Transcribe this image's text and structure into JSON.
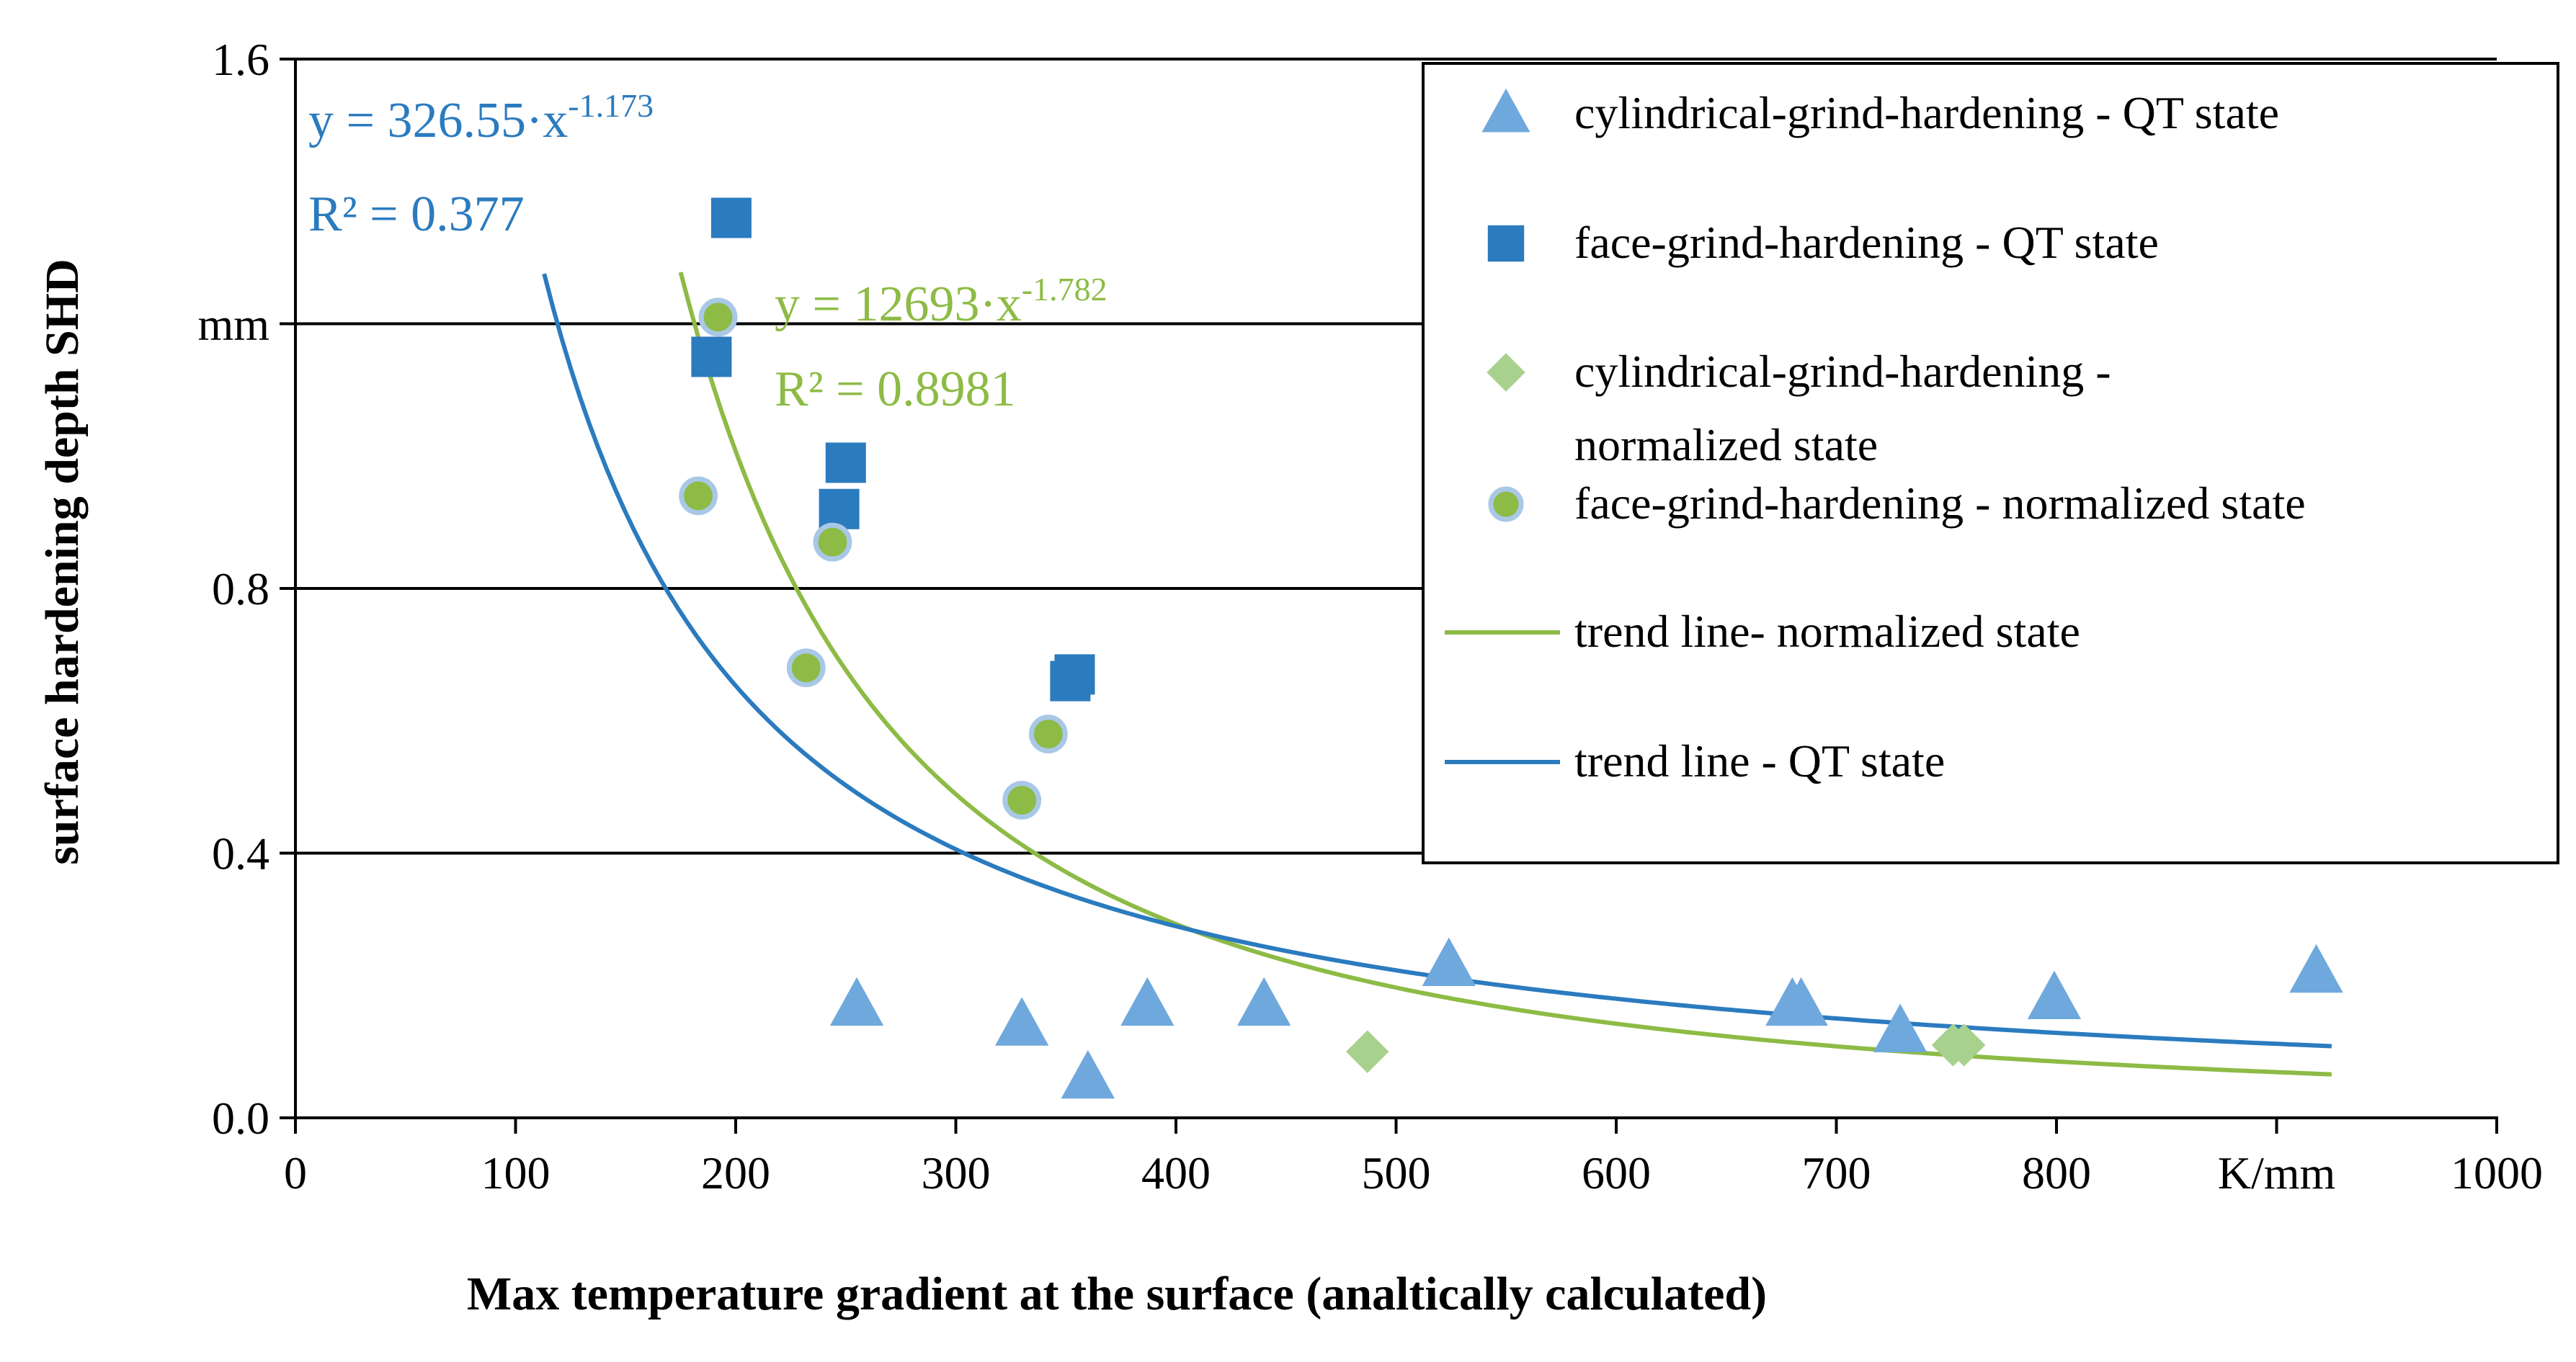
{
  "chart_data": {
    "type": "scatter",
    "xlabel": "Max temperature gradient at the surface (analtically calculated)",
    "ylabel": "surface hardening depth SHD",
    "x_unit": "K/mm",
    "y_unit": "mm",
    "xlim": [
      0,
      1000
    ],
    "ylim": [
      0,
      1.6
    ],
    "x_ticks": [
      "0",
      "100",
      "200",
      "300",
      "400",
      "500",
      "600",
      "700",
      "800",
      "K/mm",
      "1000"
    ],
    "y_ticks": [
      "0.0",
      "0.4",
      "0.8",
      "mm",
      "1.6"
    ],
    "grid": "horizontal",
    "legend_position": "top-right",
    "series": [
      {
        "name": "cylindrical-grind-hardening - QT state",
        "marker": "triangle",
        "color": "#6FA8DC",
        "points": [
          [
            255,
            0.17
          ],
          [
            330,
            0.14
          ],
          [
            360,
            0.06
          ],
          [
            387,
            0.17
          ],
          [
            440,
            0.17
          ],
          [
            524,
            0.23
          ],
          [
            680,
            0.17
          ],
          [
            684,
            0.17
          ],
          [
            729,
            0.13
          ],
          [
            799,
            0.18
          ],
          [
            918,
            0.22
          ]
        ]
      },
      {
        "name": "face-grind-hardening - QT state",
        "marker": "square",
        "color": "#2B7BBF",
        "points": [
          [
            198,
            1.36
          ],
          [
            189,
            1.15
          ],
          [
            250,
            0.99
          ],
          [
            247,
            0.92
          ],
          [
            352,
            0.66
          ],
          [
            354,
            0.67
          ]
        ]
      },
      {
        "name": "cylindrical-grind-hardening - normalized state",
        "marker": "diamond",
        "color": "#A9D18E",
        "points": [
          [
            487,
            0.1
          ],
          [
            753,
            0.11
          ],
          [
            758,
            0.11
          ]
        ]
      },
      {
        "name": "face-grind-hardening - normalized state",
        "marker": "circle",
        "color": "#8DBB45",
        "edge_color": "#A9C8E6",
        "points": [
          [
            192,
            1.21
          ],
          [
            183,
            0.94
          ],
          [
            244,
            0.87
          ],
          [
            232,
            0.68
          ],
          [
            342,
            0.58
          ],
          [
            330,
            0.48
          ]
        ]
      }
    ],
    "trend_lines": [
      {
        "name": "trend line- normalized state",
        "color": "#8DBB45",
        "coefficient": 12693,
        "exponent": -1.782,
        "x_range": [
          175,
          925
        ],
        "equation": "y = 12693·x",
        "exponent_label": "-1.782",
        "r2": "R² = 0.8981"
      },
      {
        "name": "trend line - QT state",
        "color": "#2B7BBF",
        "coefficient": 326.55,
        "exponent": -1.173,
        "x_range": [
          113,
          925
        ],
        "equation": "y = 326.55·x",
        "exponent_label": "-1.173",
        "r2": "R² = 0.377"
      }
    ]
  }
}
